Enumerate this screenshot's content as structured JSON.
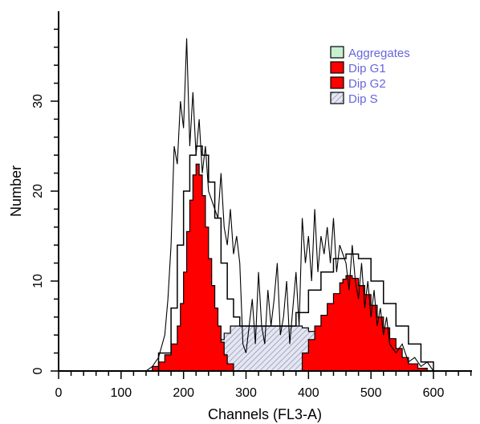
{
  "chart_data": {
    "type": "area",
    "xlabel": "Channels (FL3-A)",
    "ylabel": "Number",
    "xlim": [
      0,
      680
    ],
    "ylim": [
      0,
      40
    ],
    "x_ticks": [
      0,
      100,
      200,
      300,
      400,
      500,
      600
    ],
    "y_ticks": [
      0,
      10,
      20,
      30
    ],
    "grid": false,
    "legend_position": "top-right",
    "legend": [
      {
        "name": "Aggregates",
        "color": "#c8f0d0",
        "pattern": "solid"
      },
      {
        "name": "Dip G1",
        "color": "#ff0000",
        "pattern": "solid"
      },
      {
        "name": "Dip G2",
        "color": "#ff0000",
        "pattern": "solid"
      },
      {
        "name": "Dip S",
        "color": "#dfe2ee",
        "pattern": "hatched"
      }
    ],
    "series": [
      {
        "name": "Dip S",
        "x": [
          165,
          175,
          185,
          195,
          205,
          215,
          225,
          235,
          245,
          255,
          265,
          275,
          290,
          310,
          330,
          350,
          370,
          390,
          400,
          410,
          420,
          430,
          440,
          450,
          460,
          470,
          480,
          490,
          500,
          510,
          520,
          530
        ],
        "y": [
          0,
          0.3,
          0.6,
          1.0,
          1.3,
          1.6,
          2.0,
          2.4,
          2.9,
          3.5,
          4.2,
          5.0,
          5.0,
          5.0,
          5.0,
          5.0,
          5.0,
          4.8,
          4.4,
          4.0,
          3.6,
          3.2,
          2.8,
          2.5,
          2.2,
          1.8,
          1.5,
          1.1,
          0.8,
          0.4,
          0.2,
          0
        ]
      },
      {
        "name": "Dip G1",
        "x": [
          145,
          150,
          160,
          170,
          180,
          190,
          195,
          200,
          205,
          210,
          215,
          220,
          225,
          230,
          235,
          240,
          245,
          250,
          255,
          260,
          265,
          270,
          280
        ],
        "y": [
          0,
          0.5,
          1.0,
          1.8,
          3.0,
          5.0,
          7.5,
          11.0,
          15.5,
          19.0,
          21.8,
          23.0,
          21.8,
          19.5,
          16.0,
          12.5,
          9.5,
          7.0,
          5.0,
          3.2,
          1.8,
          0.8,
          0
        ]
      },
      {
        "name": "Dip G2",
        "x": [
          380,
          390,
          400,
          410,
          420,
          430,
          440,
          450,
          455,
          460,
          465,
          470,
          480,
          490,
          500,
          510,
          520,
          530,
          540,
          550,
          560,
          575,
          590
        ],
        "y": [
          0,
          2.0,
          3.5,
          5.0,
          6.2,
          7.5,
          8.6,
          9.8,
          10.2,
          10.6,
          10.6,
          10.3,
          9.5,
          8.5,
          7.3,
          6.0,
          4.8,
          3.6,
          2.5,
          1.5,
          0.8,
          0.3,
          0
        ]
      },
      {
        "name": "Aggregates",
        "x": [
          150,
          600
        ],
        "y": [
          0,
          0
        ]
      }
    ],
    "model_envelope": {
      "x": [
        140,
        160,
        180,
        190,
        200,
        210,
        220,
        230,
        240,
        250,
        260,
        270,
        280,
        290,
        300,
        320,
        340,
        360,
        380,
        400,
        420,
        440,
        460,
        480,
        500,
        520,
        540,
        560,
        580,
        600
      ],
      "y": [
        0,
        2,
        7,
        14,
        20,
        24,
        25,
        24,
        21,
        17,
        12,
        8,
        6,
        5,
        5,
        5,
        5,
        5,
        6.5,
        9,
        11,
        12.5,
        13,
        12.5,
        10,
        7.5,
        5,
        3,
        1,
        0
      ]
    },
    "raw_histogram": {
      "x": [
        140,
        150,
        160,
        170,
        175,
        180,
        185,
        190,
        195,
        200,
        205,
        210,
        215,
        220,
        225,
        230,
        235,
        240,
        245,
        250,
        255,
        260,
        265,
        270,
        275,
        280,
        285,
        290,
        295,
        300,
        305,
        310,
        315,
        320,
        325,
        330,
        335,
        340,
        345,
        350,
        355,
        360,
        365,
        370,
        375,
        380,
        385,
        390,
        395,
        400,
        405,
        410,
        415,
        420,
        425,
        430,
        435,
        440,
        445,
        450,
        455,
        460,
        465,
        470,
        475,
        480,
        485,
        490,
        495,
        500,
        505,
        510,
        515,
        520,
        525,
        530,
        540,
        550,
        560,
        570,
        580,
        590,
        600,
        610
      ],
      "y": [
        0,
        0.5,
        1.5,
        4,
        8,
        14,
        25,
        23,
        30,
        27,
        37,
        25,
        31,
        24,
        28,
        22,
        25,
        20,
        19,
        18,
        17,
        22,
        16,
        14,
        18,
        13,
        15,
        12,
        3,
        2,
        5,
        8,
        3,
        11,
        5,
        3,
        9,
        5,
        8,
        12,
        4,
        6,
        10,
        3,
        7,
        11,
        5,
        17,
        12,
        15,
        10,
        18,
        11,
        15,
        13,
        16,
        12,
        17,
        11,
        14,
        13,
        12,
        9,
        14,
        10,
        8,
        12,
        7,
        10,
        6,
        9,
        5,
        7,
        4,
        6,
        3,
        2,
        3,
        1,
        1.5,
        0.5,
        1,
        0,
        0
      ]
    }
  }
}
